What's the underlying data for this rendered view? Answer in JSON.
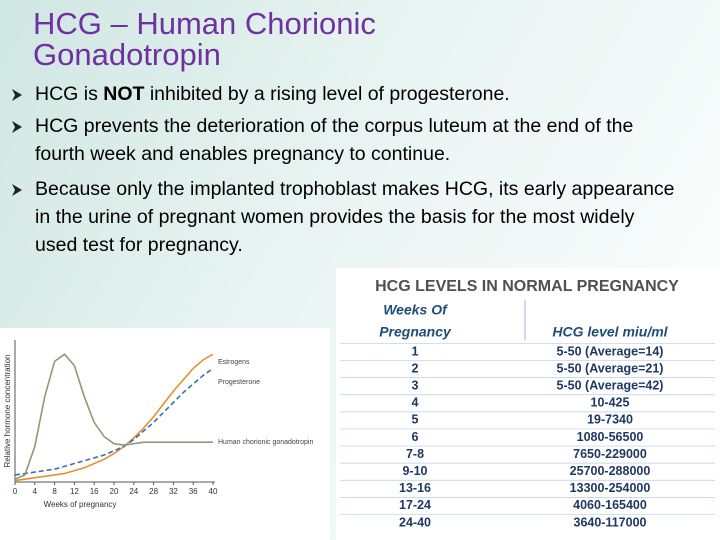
{
  "title": {
    "lines": [
      "HCG – Human Chorionic",
      "Gonadotropin"
    ]
  },
  "bullets": [
    {
      "parts": [
        "HCG is ",
        "NOT",
        " inhibited by a rising level of progesterone."
      ]
    },
    {
      "parts": [
        "HCG prevents the deterioration of the corpus luteum at the end of the fourth week and enables pregnancy to continue."
      ]
    },
    {
      "parts": [
        "Because only the implanted trophoblast makes HCG, its early appearance in the urine of pregnant women provides the basis for the most widely used test for pregnancy."
      ]
    }
  ],
  "chart_data": {
    "type": "line",
    "x_label": "Weeks of pregnancy",
    "y_label": "Relative hormone concentration",
    "x": [
      0,
      2,
      4,
      6,
      8,
      10,
      12,
      14,
      16,
      18,
      20,
      22,
      24,
      26,
      28,
      30,
      32,
      34,
      36,
      38,
      40
    ],
    "xlim": [
      0,
      40
    ],
    "xticks": [
      0,
      4,
      8,
      12,
      16,
      20,
      24,
      28,
      32,
      36,
      40
    ],
    "ylim": [
      0,
      100
    ],
    "series": [
      {
        "name": "Estrogens",
        "color": "#e8902c",
        "dashed": false,
        "values": [
          1,
          2,
          3,
          4,
          5,
          6,
          8,
          10,
          13,
          16,
          20,
          25,
          31,
          38,
          46,
          55,
          64,
          72,
          80,
          86,
          90
        ]
      },
      {
        "name": "Progesterone",
        "color": "#3a6fb0",
        "dashed": true,
        "values": [
          5,
          6,
          7,
          8,
          9,
          11,
          13,
          15,
          17,
          19,
          22,
          25,
          30,
          36,
          42,
          49,
          56,
          63,
          69,
          75,
          80
        ]
      },
      {
        "name": "Human chorionic gonadotropin",
        "color": "#8c9c70",
        "dashed": false,
        "values": [
          2,
          5,
          25,
          60,
          85,
          90,
          82,
          60,
          42,
          32,
          27,
          26,
          27,
          28,
          28,
          28,
          28,
          28,
          28,
          28,
          28
        ]
      }
    ]
  },
  "table": {
    "title": "HCG LEVELS IN NORMAL PREGNANCY",
    "header": [
      [
        "Weeks  Of",
        "Pregnancy"
      ],
      [
        "HCG level miu/ml"
      ]
    ],
    "rows": [
      [
        "1",
        "5-50 (Average=14)"
      ],
      [
        "2",
        "5-50 (Average=21)"
      ],
      [
        "3",
        "5-50 (Average=42)"
      ],
      [
        "4",
        "10-425"
      ],
      [
        "5",
        "19-7340"
      ],
      [
        "6",
        "1080-56500"
      ],
      [
        "7-8",
        "7650-229000"
      ],
      [
        "9-10",
        "25700-288000"
      ],
      [
        "13-16",
        "13300-254000"
      ],
      [
        "17-24",
        "4060-165400"
      ],
      [
        "24-40",
        "3640-117000"
      ]
    ]
  }
}
